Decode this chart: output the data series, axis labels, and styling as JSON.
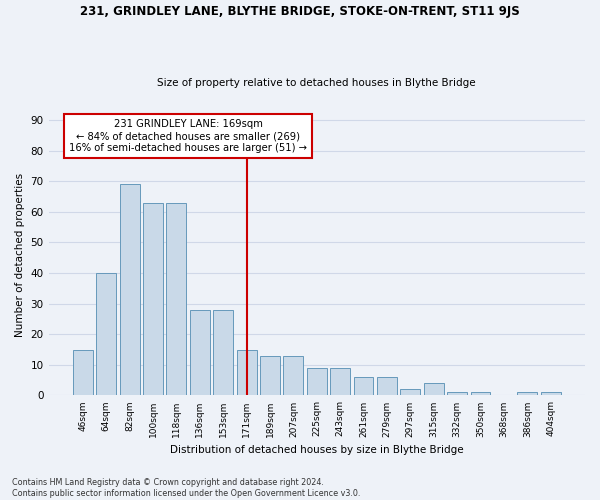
{
  "title": "231, GRINDLEY LANE, BLYTHE BRIDGE, STOKE-ON-TRENT, ST11 9JS",
  "subtitle": "Size of property relative to detached houses in Blythe Bridge",
  "xlabel": "Distribution of detached houses by size in Blythe Bridge",
  "ylabel": "Number of detached properties",
  "footer1": "Contains HM Land Registry data © Crown copyright and database right 2024.",
  "footer2": "Contains public sector information licensed under the Open Government Licence v3.0.",
  "bar_labels": [
    "46sqm",
    "64sqm",
    "82sqm",
    "100sqm",
    "118sqm",
    "136sqm",
    "153sqm",
    "171sqm",
    "189sqm",
    "207sqm",
    "225sqm",
    "243sqm",
    "261sqm",
    "279sqm",
    "297sqm",
    "315sqm",
    "332sqm",
    "350sqm",
    "368sqm",
    "386sqm",
    "404sqm"
  ],
  "bar_values": [
    15,
    40,
    69,
    63,
    63,
    28,
    28,
    15,
    13,
    13,
    9,
    9,
    6,
    6,
    2,
    4,
    1,
    1,
    0,
    1,
    1
  ],
  "bar_color": "#c9d9e8",
  "bar_edge_color": "#6699bb",
  "annotation_line_x": "171sqm",
  "annotation_text1": "231 GRINDLEY LANE: 169sqm",
  "annotation_text2": "← 84% of detached houses are smaller (269)",
  "annotation_text3": "16% of semi-detached houses are larger (51) →",
  "vline_color": "#cc0000",
  "annotation_box_color": "#ffffff",
  "annotation_box_edge": "#cc0000",
  "bg_color": "#eef2f8",
  "grid_color": "#d0d8e8",
  "ylim": [
    0,
    92
  ],
  "yticks": [
    0,
    10,
    20,
    30,
    40,
    50,
    60,
    70,
    80,
    90
  ]
}
